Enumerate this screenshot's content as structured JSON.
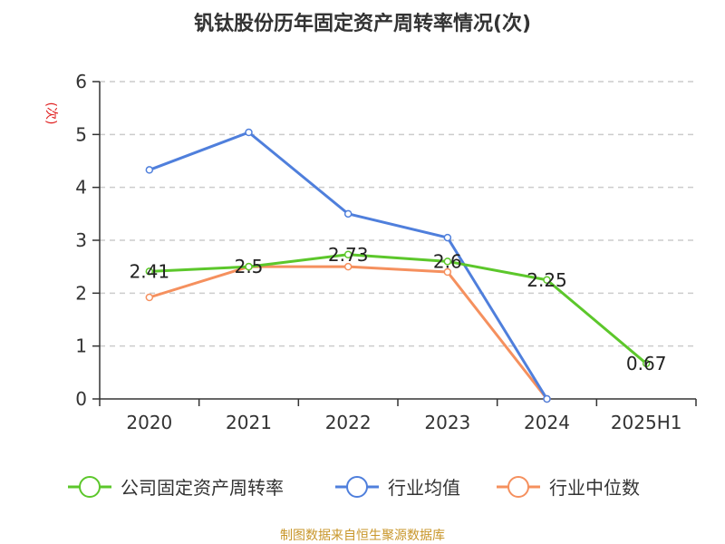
{
  "title": "钒钛股份历年固定资产周转率情况(次)",
  "source": "制图数据来自恒生聚源数据库",
  "colors": {
    "company": "#5cc72b",
    "industry_avg": "#4f7fdc",
    "industry_median": "#f5905e",
    "ylabel": "#e02020",
    "source": "#c8962a",
    "grid": "#cccccc",
    "axis": "#333333"
  },
  "chart_data": {
    "type": "line",
    "title": "钒钛股份历年固定资产周转率情况(次)",
    "ylabel": "(次)",
    "xlabel": "",
    "categories": [
      "2020",
      "2021",
      "2022",
      "2023",
      "2024",
      "2025H1"
    ],
    "ylim": [
      0,
      6
    ],
    "yticks": [
      0,
      1,
      2,
      3,
      4,
      5,
      6
    ],
    "grid": true,
    "legend_position": "bottom",
    "series": [
      {
        "name": "公司固定资产周转率",
        "key": "company",
        "values": [
          2.41,
          2.5,
          2.73,
          2.6,
          2.25,
          0.67
        ],
        "labels": [
          "2.41",
          "2.5",
          "2.73",
          "2.6",
          "2.25",
          "0.67"
        ]
      },
      {
        "name": "行业均值",
        "key": "industry_avg",
        "values": [
          4.33,
          5.04,
          3.5,
          3.05,
          0,
          null
        ]
      },
      {
        "name": "行业中位数",
        "key": "industry_median",
        "values": [
          1.92,
          2.5,
          2.5,
          2.4,
          0,
          null
        ]
      }
    ]
  }
}
